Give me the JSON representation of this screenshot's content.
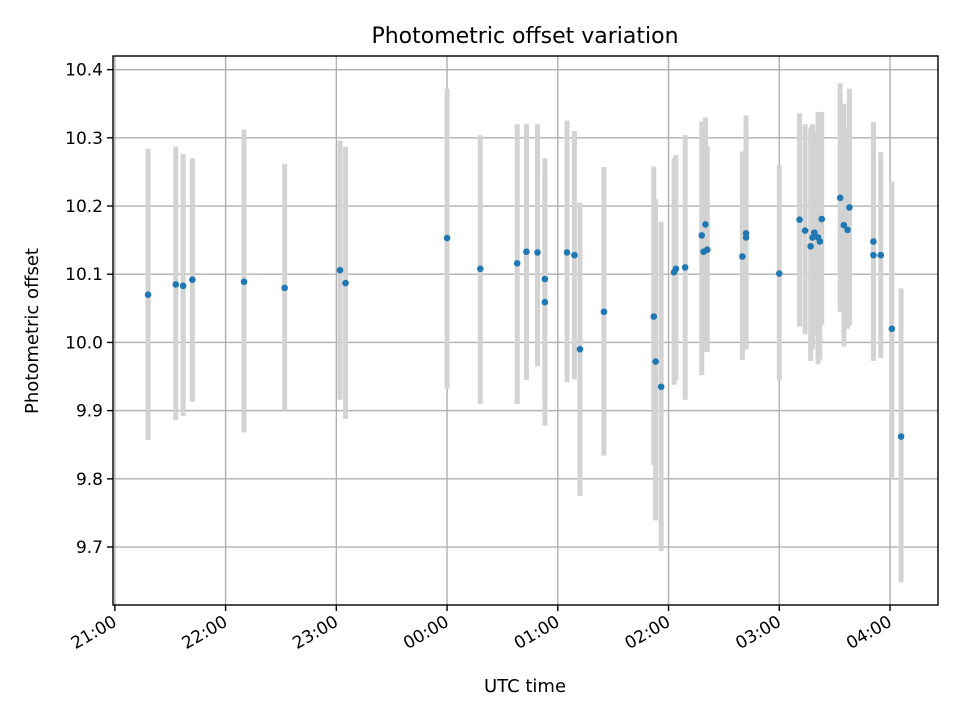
{
  "chart_data": {
    "type": "scatter",
    "title": "Photometric offset variation",
    "xlabel": "UTC time",
    "ylabel": "Photometric offset",
    "x_tick_labels": [
      "21:00",
      "22:00",
      "23:00",
      "00:00",
      "01:00",
      "02:00",
      "03:00",
      "04:00"
    ],
    "y_ticks": [
      9.7,
      9.8,
      9.9,
      10.0,
      10.1,
      10.2,
      10.3,
      10.4
    ],
    "y_tick_labels": [
      "9.7",
      "9.8",
      "9.9",
      "10.0",
      "10.1",
      "10.2",
      "10.3",
      "10.4"
    ],
    "xlim": [
      "20:59",
      "04:26"
    ],
    "ylim": [
      9.615,
      10.42
    ],
    "grid": true,
    "error_bar_color": "#d3d3d3",
    "marker_color": "#1f77b4",
    "series": [
      {
        "x": [
          "21:18",
          "21:33",
          "21:37",
          "21:42",
          "22:10",
          "22:32",
          "23:02",
          "23:05",
          "00:00",
          "00:18",
          "00:38",
          "00:43",
          "00:49",
          "00:53",
          "00:53",
          "01:05",
          "01:09",
          "01:12",
          "01:25",
          "01:52",
          "01:53",
          "01:56",
          "02:03",
          "02:04",
          "02:09",
          "02:18",
          "02:19",
          "02:20",
          "02:21",
          "02:40",
          "02:42",
          "02:42",
          "03:00",
          "03:11",
          "03:14",
          "03:17",
          "03:18",
          "03:19",
          "03:21",
          "03:22",
          "03:23",
          "03:33",
          "03:35",
          "03:37",
          "03:38",
          "03:51",
          "03:51",
          "03:55",
          "04:01",
          "04:06"
        ],
        "y": [
          10.07,
          10.085,
          10.083,
          10.092,
          10.089,
          10.08,
          10.106,
          10.087,
          10.153,
          10.108,
          10.116,
          10.133,
          10.132,
          10.093,
          10.059,
          10.132,
          10.128,
          9.99,
          10.045,
          10.038,
          9.972,
          9.935,
          10.103,
          10.108,
          10.11,
          10.157,
          10.133,
          10.173,
          10.136,
          10.126,
          10.16,
          10.154,
          10.101,
          10.18,
          10.164,
          10.141,
          10.154,
          10.161,
          10.154,
          10.148,
          10.181,
          10.212,
          10.172,
          10.165,
          10.198,
          10.148,
          10.128,
          10.128,
          10.02,
          9.862
        ],
        "error_low": [
          9.857,
          9.886,
          9.892,
          9.913,
          9.868,
          9.9,
          9.916,
          9.888,
          9.932,
          9.91,
          9.91,
          9.945,
          9.965,
          9.878,
          9.918,
          9.942,
          9.946,
          9.775,
          9.834,
          9.82,
          9.739,
          9.694,
          9.938,
          9.944,
          9.916,
          9.952,
          9.987,
          10.0,
          9.986,
          9.974,
          9.99,
          9.99,
          9.944,
          10.023,
          10.012,
          9.973,
          9.99,
          10.01,
          9.968,
          9.975,
          10.026,
          10.045,
          9.994,
          10.02,
          10.025,
          9.973,
          9.974,
          9.977,
          9.8,
          9.648
        ],
        "error_high": [
          10.284,
          10.287,
          10.276,
          10.27,
          10.312,
          10.262,
          10.296,
          10.287,
          10.372,
          10.304,
          10.32,
          10.32,
          10.32,
          10.27,
          10.24,
          10.325,
          10.31,
          10.205,
          10.257,
          10.258,
          10.21,
          10.177,
          10.27,
          10.275,
          10.304,
          10.324,
          10.282,
          10.33,
          10.288,
          10.28,
          10.333,
          10.32,
          10.26,
          10.336,
          10.32,
          10.315,
          10.32,
          10.31,
          10.338,
          10.31,
          10.338,
          10.38,
          10.35,
          10.313,
          10.372,
          10.323,
          10.282,
          10.279,
          10.236,
          10.079
        ]
      }
    ]
  }
}
